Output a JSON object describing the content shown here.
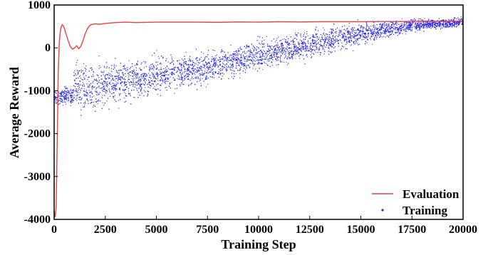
{
  "chart_data": {
    "type": "scatter",
    "xlabel": "Training Step",
    "ylabel": "Average Reward",
    "xlim": [
      0,
      20000
    ],
    "ylim": [
      -4000,
      1000
    ],
    "xticks": [
      "0",
      "2500",
      "5000",
      "7500",
      "10000",
      "12500",
      "15000",
      "17500",
      "20000"
    ],
    "xtick_values": [
      0,
      2500,
      5000,
      7500,
      10000,
      12500,
      15000,
      17500,
      20000
    ],
    "yticks": [
      "1000",
      "0",
      "-1000",
      "-2000",
      "-3000",
      "-4000"
    ],
    "ytick_values": [
      1000,
      0,
      -1000,
      -2000,
      -3000,
      -4000
    ],
    "grid": false,
    "legend_position": "bottom-right",
    "series": [
      {
        "name": "Evaluation",
        "kind": "line",
        "color": "#e8413f",
        "x": [
          0,
          50,
          100,
          150,
          200,
          250,
          300,
          350,
          400,
          450,
          500,
          600,
          700,
          800,
          900,
          1000,
          1100,
          1200,
          1300,
          1400,
          1500,
          1600,
          1700,
          1800,
          1900,
          2000,
          2200,
          2500,
          3000,
          3500,
          4000,
          5000,
          6000,
          7000,
          8000,
          9000,
          10000,
          11000,
          12000,
          13000,
          14000,
          15000,
          16000,
          17000,
          18000,
          19000,
          20000
        ],
        "y": [
          -3800,
          -3950,
          -3700,
          -2200,
          -600,
          100,
          380,
          500,
          540,
          510,
          460,
          300,
          150,
          20,
          -30,
          0,
          50,
          -20,
          30,
          150,
          300,
          420,
          500,
          540,
          550,
          560,
          550,
          570,
          590,
          600,
          590,
          600,
          600,
          600,
          595,
          605,
          600,
          610,
          605,
          610,
          610,
          610,
          615,
          615,
          620,
          620,
          620
        ]
      },
      {
        "name": "Training",
        "kind": "scatter",
        "color": "#1f1ff0",
        "trend_x": [
          0,
          950,
          1000,
          1500,
          2500,
          5000,
          7500,
          10000,
          12500,
          15000,
          17500,
          20000
        ],
        "trend_y": [
          -1120,
          -1120,
          -850,
          -950,
          -850,
          -650,
          -450,
          -180,
          80,
          330,
          530,
          600
        ],
        "spread_y": [
          90,
          90,
          280,
          260,
          230,
          200,
          180,
          160,
          140,
          110,
          70,
          50
        ],
        "count": 6000
      }
    ]
  }
}
